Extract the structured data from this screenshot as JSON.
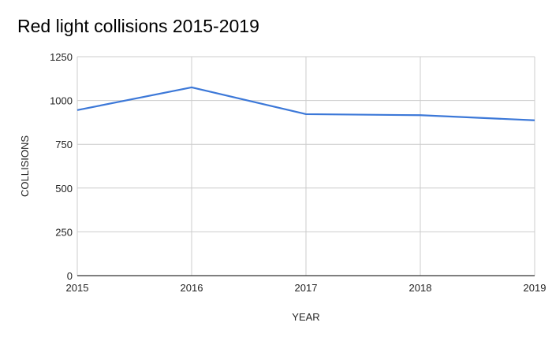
{
  "chart_data": {
    "type": "line",
    "title": "Red light collisions 2015-2019",
    "xlabel": "YEAR",
    "ylabel": "COLLISIONS",
    "categories": [
      "2015",
      "2016",
      "2017",
      "2018",
      "2019"
    ],
    "series": [
      {
        "values": [
          945,
          1075,
          922,
          916,
          887
        ],
        "color": "#3c78d8"
      }
    ],
    "ylim": [
      0,
      1250
    ],
    "yticks": [
      "0",
      "250",
      "500",
      "750",
      "1000",
      "1250"
    ],
    "grid": true,
    "legend": "none"
  }
}
